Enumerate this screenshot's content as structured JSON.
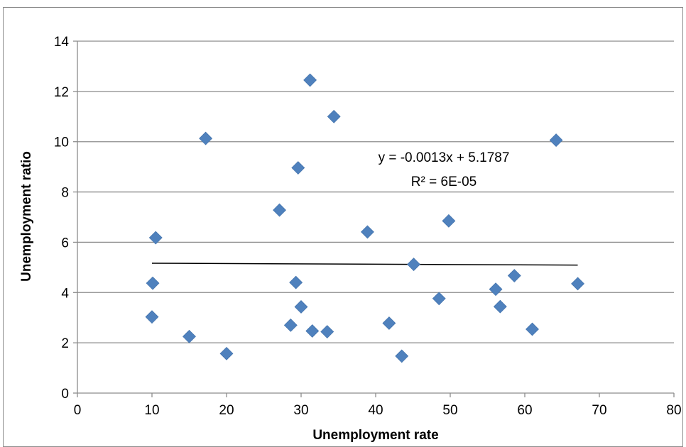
{
  "chart_data": {
    "type": "scatter",
    "title": "",
    "xlabel": "Unemployment rate",
    "ylabel": "Unemployment ratio",
    "xlim": [
      0,
      80
    ],
    "ylim": [
      0,
      14
    ],
    "x_ticks": [
      0,
      10,
      20,
      30,
      40,
      50,
      60,
      70,
      80
    ],
    "y_ticks": [
      0,
      2,
      4,
      6,
      8,
      10,
      12,
      14
    ],
    "x_tick_labels": [
      "0",
      "10",
      "20",
      "30",
      "40",
      "50",
      "60",
      "70",
      "80"
    ],
    "y_tick_labels": [
      "0",
      "2",
      "4",
      "6",
      "8",
      "10",
      "12",
      "14"
    ],
    "grid": "horizontal",
    "legend": "none",
    "marker": "diamond",
    "marker_color": "#4f81bd",
    "trendline_color": "#000000",
    "gridline_color": "#8c8c8c",
    "series": [
      {
        "points": [
          {
            "x": 10.0,
            "y": 3.03
          },
          {
            "x": 10.1,
            "y": 4.37
          },
          {
            "x": 10.5,
            "y": 6.18
          },
          {
            "x": 15.0,
            "y": 2.25
          },
          {
            "x": 17.2,
            "y": 10.13
          },
          {
            "x": 20.0,
            "y": 1.57
          },
          {
            "x": 27.1,
            "y": 7.28
          },
          {
            "x": 28.6,
            "y": 2.7
          },
          {
            "x": 29.3,
            "y": 4.4
          },
          {
            "x": 29.6,
            "y": 8.96
          },
          {
            "x": 30.0,
            "y": 3.43
          },
          {
            "x": 31.2,
            "y": 12.45
          },
          {
            "x": 31.5,
            "y": 2.47
          },
          {
            "x": 33.5,
            "y": 2.44
          },
          {
            "x": 34.4,
            "y": 11.0
          },
          {
            "x": 38.9,
            "y": 6.41
          },
          {
            "x": 41.8,
            "y": 2.78
          },
          {
            "x": 43.5,
            "y": 1.47
          },
          {
            "x": 45.1,
            "y": 5.12
          },
          {
            "x": 48.5,
            "y": 3.76
          },
          {
            "x": 49.8,
            "y": 6.85
          },
          {
            "x": 56.1,
            "y": 4.13
          },
          {
            "x": 56.7,
            "y": 3.44
          },
          {
            "x": 58.6,
            "y": 4.67
          },
          {
            "x": 61.0,
            "y": 2.54
          },
          {
            "x": 64.2,
            "y": 10.06
          },
          {
            "x": 67.1,
            "y": 4.35
          }
        ]
      }
    ],
    "trendline": {
      "slope": -0.0013,
      "intercept": 5.1787,
      "x_range": [
        10,
        67.1
      ]
    },
    "annotations": {
      "equation": "y = -0.0013x + 5.1787",
      "r_squared": "R² = 6E-05"
    }
  }
}
